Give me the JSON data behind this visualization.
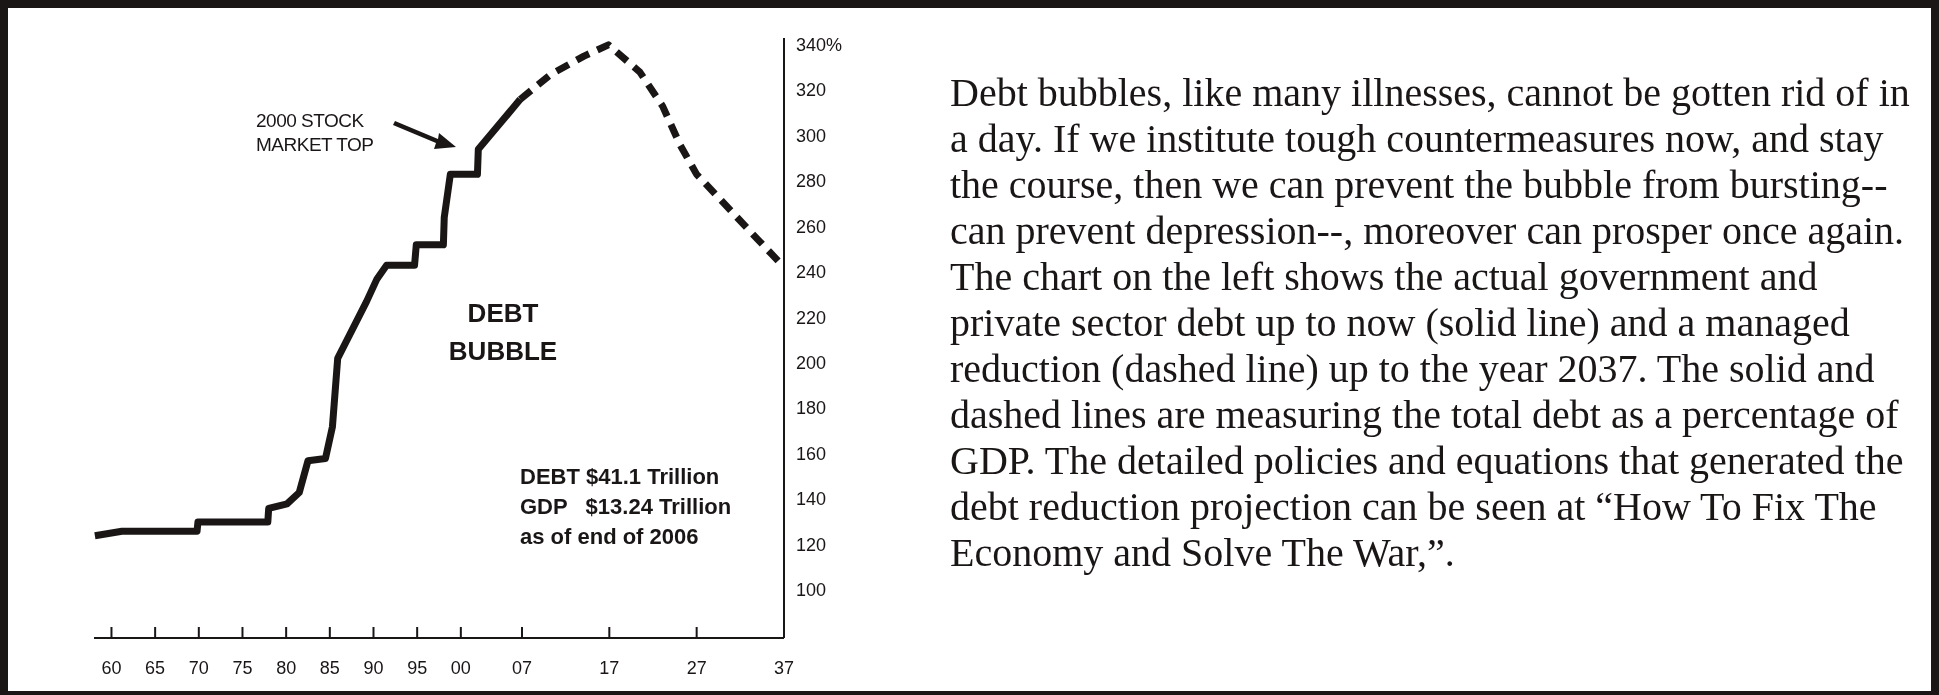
{
  "chart_data": {
    "type": "line",
    "x": [
      1958.1,
      1961.2,
      1969.8,
      1969.9,
      1977.9,
      1978,
      1980.1,
      1981.5,
      1982.5,
      1984.5,
      1985.3,
      1985.9,
      1989.2,
      1990.4,
      1991.5,
      1994.7,
      1994.9,
      1998,
      1998.1,
      1998.8,
      2001.9,
      2002,
      2006.8
    ],
    "series": [
      {
        "color": "#1a1616",
        "line_style": "solid",
        "values": [
          124,
          126,
          126,
          130,
          130,
          136,
          138,
          143,
          157,
          158,
          172,
          202,
          227,
          237,
          243,
          243,
          252,
          252,
          264,
          283,
          283,
          294,
          316
        ]
      },
      {
        "color": "#1a1616",
        "line_style": "dashed",
        "x": [
          2006.8,
          2010.3,
          2014.1,
          2016.9,
          2020.5,
          2023.1,
          2025.1,
          2027,
          2029.7,
          2033.1,
          2036.8
        ],
        "values": [
          316,
          327,
          335,
          340,
          328,
          313,
          296,
          283,
          272,
          258,
          243
        ]
      }
    ],
    "xlim": [
      1958,
      2037
    ],
    "xticks": [
      {
        "value": 1960,
        "label": "60"
      },
      {
        "value": 1965,
        "label": "65"
      },
      {
        "value": 1970,
        "label": "70"
      },
      {
        "value": 1975,
        "label": "75"
      },
      {
        "value": 1980,
        "label": "80"
      },
      {
        "value": 1985,
        "label": "85"
      },
      {
        "value": 1990,
        "label": "90"
      },
      {
        "value": 1995,
        "label": "95"
      },
      {
        "value": 2000,
        "label": "00"
      },
      {
        "value": 2007,
        "label": "07"
      },
      {
        "value": 2017,
        "label": "17"
      },
      {
        "value": 2027,
        "label": "27"
      },
      {
        "value": 2037,
        "label": "37"
      }
    ],
    "ylim": [
      79,
      343
    ],
    "yticks": [
      100,
      120,
      140,
      160,
      180,
      200,
      220,
      240,
      260,
      280,
      300,
      320,
      {
        "value": 340,
        "label": "340%"
      }
    ],
    "annotations": [
      "2000 STOCK\nMARKET TOP",
      "DEBT\nBUBBLE",
      "DEBT $41.1 Trillion\nGDP   $13.24 Trillion\nas of end of 2006",
      "Debt bubbles, like many illnesses, cannot be gotten rid of in a day. If we institute tough countermeasures now, and stay the course, then we can prevent the bubble from bursting--can prevent depression--, moreover can prosper once again. The chart on the left shows the actual government and private sector debt up to now (solid line) and a managed reduction (dashed line) up to the year 2037. The solid and dashed lines are measuring the total debt as a percentage of GDP. The detailed policies and equations that generated the debt reduction projection can be seen at “How To Fix The Economy and Solve The War,”."
    ]
  }
}
